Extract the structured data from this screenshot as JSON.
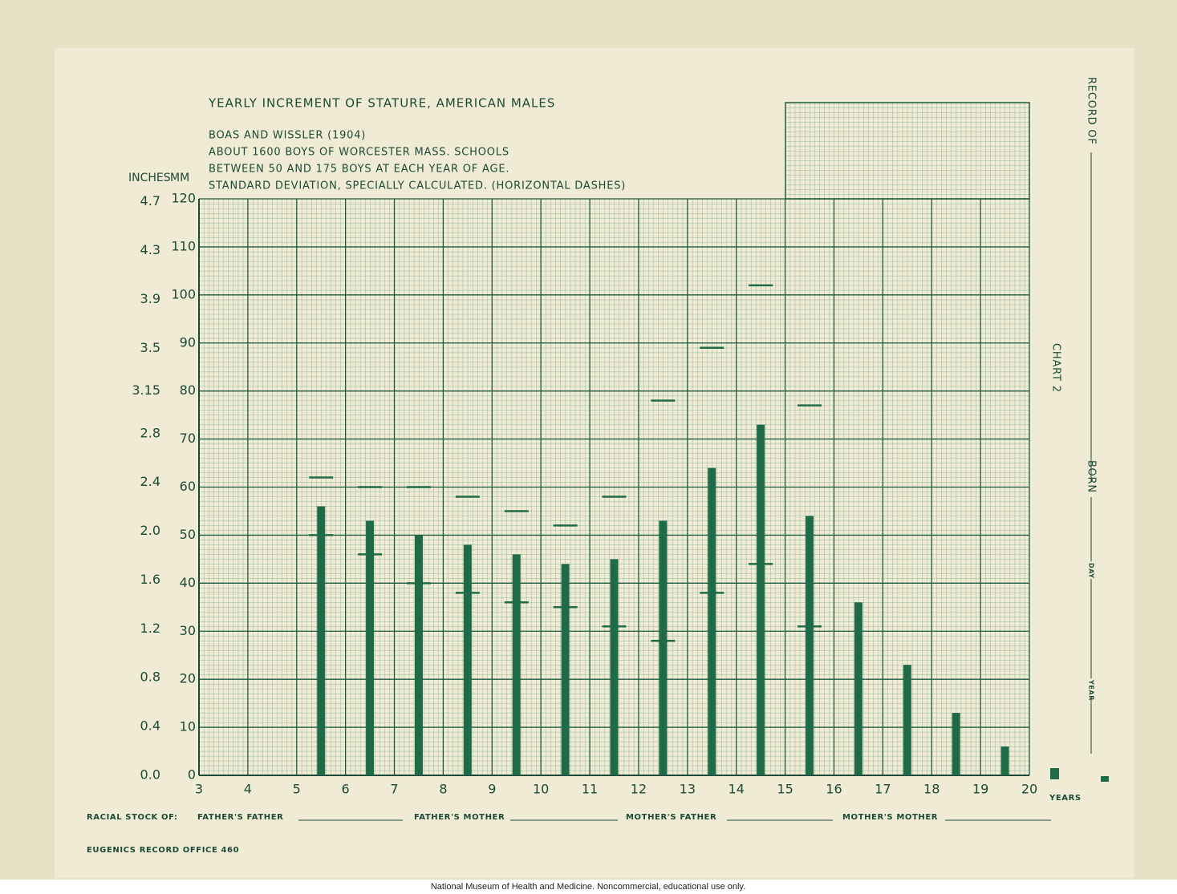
{
  "chart_data": {
    "type": "bar",
    "title": "YEARLY INCREMENT OF STATURE, AMERICAN MALES",
    "notes": [
      "BOAS AND WISSLER (1904)",
      "ABOUT 1600 BOYS OF WORCESTER MASS. SCHOOLS",
      "BETWEEN 50 AND 175 BOYS AT EACH YEAR OF AGE.",
      "STANDARD DEVIATION, SPECIALLY CALCULATED. (HORIZONTAL DASHES)"
    ],
    "y2_label": "INCHES",
    "y_label": "MM",
    "x_label": "YEARS",
    "x": [
      5.5,
      6.5,
      7.5,
      8.5,
      9.5,
      10.5,
      11.5,
      12.5,
      13.5,
      14.5,
      15.5,
      16.5,
      17.5,
      18.5,
      19.5
    ],
    "values": [
      56,
      53,
      50,
      48,
      46,
      44,
      45,
      53,
      64,
      73,
      54,
      36,
      23,
      13,
      6
    ],
    "sd_high": [
      62,
      60,
      60,
      58,
      55,
      52,
      58,
      78,
      89,
      102,
      77,
      null,
      null,
      null,
      null
    ],
    "sd_low": [
      50,
      46,
      40,
      38,
      36,
      35,
      31,
      28,
      38,
      44,
      31,
      null,
      null,
      null,
      null
    ],
    "color": "#1f6b48",
    "xlim": [
      3,
      20
    ],
    "xticks": [
      3,
      4,
      5,
      6,
      7,
      8,
      9,
      10,
      11,
      12,
      13,
      14,
      15,
      16,
      17,
      18,
      19,
      20
    ],
    "ylim": [
      0,
      120
    ],
    "yticks": [
      0,
      10,
      20,
      30,
      40,
      50,
      60,
      70,
      80,
      90,
      100,
      110,
      120
    ],
    "y2lim": [
      0,
      4.7244
    ],
    "y2ticks": [
      {
        "value": 0,
        "label": "0.0"
      },
      0.4,
      0.8,
      1.2,
      1.6,
      {
        "value": 2,
        "label": "2.0"
      },
      2.4,
      2.8,
      3.15,
      3.5,
      3.9,
      4.3,
      4.7
    ],
    "grid": true
  },
  "form": {
    "record_of": "RECORD OF",
    "chart_no": "CHART 2",
    "born": "BORN",
    "day": "DAY",
    "year": "YEAR",
    "racial_stock": "RACIAL STOCK OF:",
    "fields": [
      "FATHER'S FATHER",
      "FATHER'S MOTHER",
      "MOTHER'S FATHER",
      "MOTHER'S MOTHER"
    ],
    "office": "EUGENICS RECORD OFFICE 460"
  },
  "credit": "National Museum of Health and Medicine. Noncommercial, educational use only."
}
